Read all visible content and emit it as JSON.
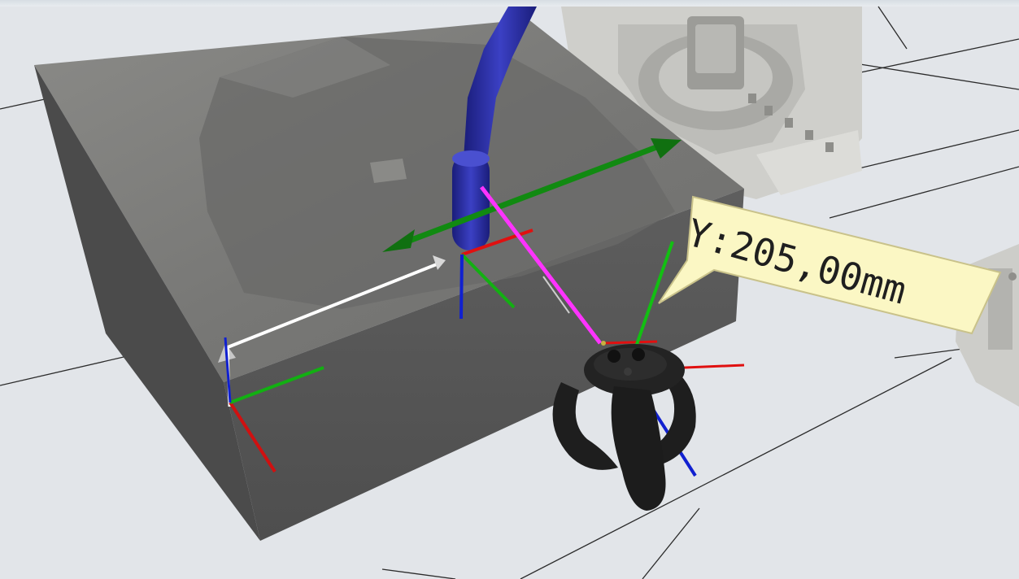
{
  "viewport": {
    "measurement_label": "Y:205,00mm"
  },
  "colors": {
    "floor": "#e3e6ea",
    "grid_line": "#2a2a2a",
    "block_top": "#7d7d7b",
    "block_front": "#565656",
    "block_left": "#4a4a4a",
    "torch": "#2a2ea0",
    "axis_x": "#e01010",
    "axis_y": "#10b010",
    "axis_z": "#1020d0",
    "measure_line": "#ffffff",
    "pointer_line": "#ff33ff",
    "move_arrow": "#118a11",
    "label_bg": "#fbf7c4",
    "robot": "#c9c9c6",
    "controller": "#1f1f1f"
  },
  "icons": [
    "move-arrow-icon",
    "controller-icon",
    "axis-gizmo-icon"
  ]
}
